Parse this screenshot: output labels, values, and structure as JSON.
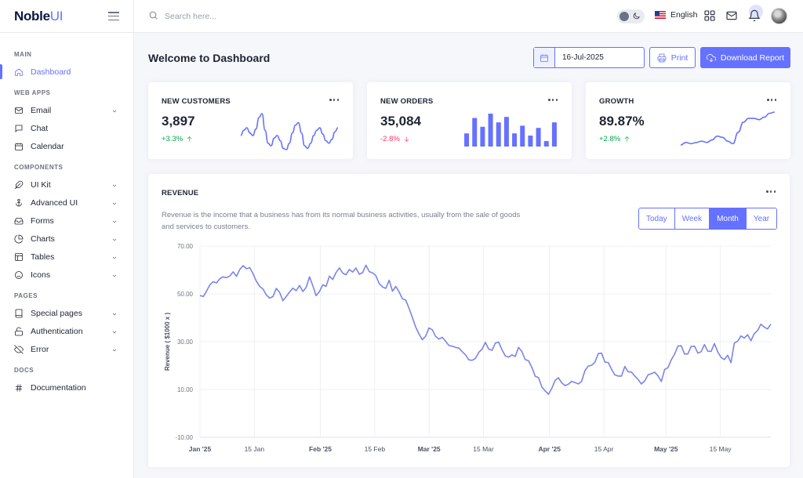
{
  "brand": {
    "name_main": "Noble",
    "name_accent": "UI"
  },
  "topbar": {
    "search_placeholder": "Search here...",
    "language": "English"
  },
  "sidebar": {
    "sections": [
      {
        "title": "MAIN",
        "items": [
          {
            "label": "Dashboard",
            "icon": "home-icon",
            "active": true,
            "chevron": false
          }
        ]
      },
      {
        "title": "WEB APPS",
        "items": [
          {
            "label": "Email",
            "icon": "mail-icon",
            "chevron": true
          },
          {
            "label": "Chat",
            "icon": "chat-icon",
            "chevron": false
          },
          {
            "label": "Calendar",
            "icon": "calendar-icon",
            "chevron": false
          }
        ]
      },
      {
        "title": "COMPONENTS",
        "items": [
          {
            "label": "UI Kit",
            "icon": "feather-icon",
            "chevron": true
          },
          {
            "label": "Advanced UI",
            "icon": "anchor-icon",
            "chevron": true
          },
          {
            "label": "Forms",
            "icon": "inbox-icon",
            "chevron": true
          },
          {
            "label": "Charts",
            "icon": "pie-chart-icon",
            "chevron": true
          },
          {
            "label": "Tables",
            "icon": "layout-icon",
            "chevron": true
          },
          {
            "label": "Icons",
            "icon": "smile-icon",
            "chevron": true
          }
        ]
      },
      {
        "title": "PAGES",
        "items": [
          {
            "label": "Special pages",
            "icon": "book-icon",
            "chevron": true
          },
          {
            "label": "Authentication",
            "icon": "unlock-icon",
            "chevron": true
          },
          {
            "label": "Error",
            "icon": "eye-off-icon",
            "chevron": true
          }
        ]
      },
      {
        "title": "DOCS",
        "items": [
          {
            "label": "Documentation",
            "icon": "hash-icon",
            "chevron": false
          }
        ]
      }
    ]
  },
  "header": {
    "title": "Welcome to Dashboard",
    "date_value": "16-Jul-2025",
    "print_label": "Print",
    "download_label": "Download Report"
  },
  "stats": [
    {
      "title": "NEW CUSTOMERS",
      "value": "3,897",
      "change": "+3.3%",
      "trend": "up"
    },
    {
      "title": "NEW ORDERS",
      "value": "35,084",
      "change": "-2.8%",
      "trend": "down"
    },
    {
      "title": "GROWTH",
      "value": "89.87%",
      "change": "+2.8%",
      "trend": "up"
    }
  ],
  "revenue": {
    "title": "REVENUE",
    "description": "Revenue is the income that a business has from its normal business activities, usually from the sale of goods and services to customers.",
    "ranges": [
      "Today",
      "Week",
      "Month",
      "Year"
    ],
    "active_range": "Month"
  },
  "colors": {
    "accent": "#6571ff",
    "success": "#05a34a",
    "danger": "#ff3366",
    "text": "#1f2433"
  },
  "chart_data": [
    {
      "type": "line",
      "title": "NEW CUSTOMERS sparkline",
      "values": [
        36,
        40,
        42,
        38,
        36,
        41,
        50,
        53,
        40,
        30,
        28,
        34,
        36,
        32,
        26,
        25,
        30,
        38,
        44,
        46,
        38,
        28,
        26,
        30,
        36,
        40,
        42,
        37,
        32,
        30,
        33,
        39,
        42
      ]
    },
    {
      "type": "bar",
      "title": "NEW ORDERS sparkline",
      "values": [
        12,
        26,
        18,
        30,
        22,
        27,
        12,
        19,
        10,
        17,
        5,
        22
      ]
    },
    {
      "type": "line",
      "title": "GROWTH sparkline",
      "values": [
        10,
        12,
        11,
        12,
        13,
        12,
        14,
        17,
        16,
        13,
        11,
        20,
        28,
        31,
        31,
        30,
        32,
        35,
        36
      ]
    },
    {
      "type": "line",
      "title": "",
      "xlabel": "",
      "ylabel": "Revenue ( $1000 x )",
      "ylim": [
        -10,
        70
      ],
      "yticks": [
        "-10.00",
        "10.00",
        "30.00",
        "50.00",
        "70.00"
      ],
      "xticks": [
        "Jan '25",
        "15 Jan",
        "Feb '25",
        "15 Feb",
        "Mar '25",
        "15 Mar",
        "Apr '25",
        "15 Apr",
        "May '25",
        "15 May"
      ],
      "x_start": "2025-01-01",
      "x_end": "2025-05-28",
      "grid": true,
      "values": [
        49.3,
        48.9,
        51.2,
        53.8,
        55.1,
        54.6,
        56.4,
        57.1,
        56.8,
        57.5,
        59.2,
        57.3,
        60.2,
        61.8,
        60.5,
        61.0,
        58.4,
        55.2,
        53.1,
        52.0,
        49.5,
        48.2,
        48.9,
        52.3,
        50.6,
        47.1,
        48.9,
        50.8,
        52.4,
        51.3,
        53.5,
        51.0,
        52.7,
        57.1,
        53.4,
        49.2,
        51.0,
        53.8,
        53.1,
        57.4,
        56.0,
        58.9,
        60.9,
        58.7,
        58.0,
        60.2,
        59.1,
        60.8,
        58.2,
        58.9,
        62.0,
        59.3,
        58.8,
        57.6,
        54.3,
        52.9,
        52.3,
        55.7,
        51.1,
        53.1,
        50.8,
        47.9,
        47.4,
        43.9,
        40.1,
        36.1,
        33.2,
        30.8,
        32.3,
        35.7,
        35.0,
        32.2,
        31.1,
        31.8,
        30.2,
        28.4,
        28.1,
        27.6,
        27.3,
        25.8,
        24.5,
        22.4,
        22.2,
        23.0,
        25.5,
        26.9,
        29.7,
        26.9,
        26.4,
        29.4,
        29.8,
        26.6,
        24.0,
        23.5,
        24.5,
        23.8,
        27.6,
        25.8,
        22.5,
        22.0,
        19.2,
        15.5,
        15.0,
        11.0,
        9.4,
        8.0,
        10.5,
        13.8,
        14.9,
        12.8,
        11.6,
        12.2,
        13.4,
        12.9,
        12.3,
        13.4,
        17.9,
        19.8,
        20.1,
        21.4,
        25.0,
        25.2,
        21.4,
        21.3,
        18.5,
        16.1,
        15.6,
        15.6,
        19.6,
        17.4,
        17.3,
        15.6,
        14.2,
        12.3,
        13.6,
        16.1,
        16.6,
        17.2,
        15.7,
        13.3,
        18.4,
        19.1,
        22.4,
        24.8,
        28.2,
        28.3,
        24.8,
        24.9,
        28.0,
        28.1,
        25.2,
        25.8,
        28.8,
        26.0,
        25.9,
        29.2,
        25.7,
        23.4,
        22.5,
        24.3,
        21.2,
        29.4,
        30.2,
        32.4,
        31.5,
        32.9,
        30.4,
        33.3,
        34.7,
        37.3,
        36.1,
        35.3,
        37.3
      ]
    }
  ]
}
